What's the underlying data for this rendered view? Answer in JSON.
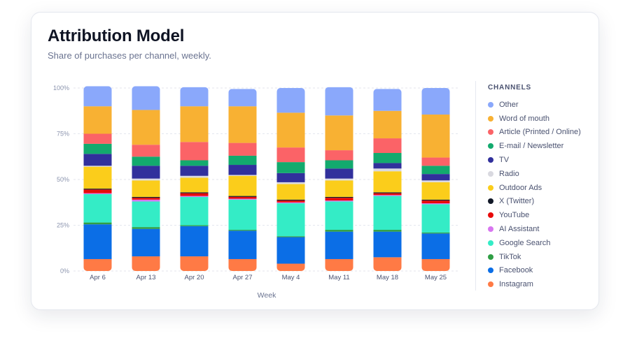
{
  "card": {
    "title": "Attribution Model",
    "subtitle": "Share of purchases per channel, weekly."
  },
  "legend": {
    "title": "CHANNELS"
  },
  "chart_data": {
    "type": "bar",
    "stacked": true,
    "xlabel": "Week",
    "ylabel": "",
    "ylim": [
      0,
      100
    ],
    "yticks": [
      "0%",
      "25%",
      "50%",
      "75%",
      "100%"
    ],
    "grid": true,
    "legend_position": "right",
    "categories": [
      "Apr 6",
      "Apr 13",
      "Apr 20",
      "Apr 27",
      "May 4",
      "May 11",
      "May 18",
      "May 25"
    ],
    "series": [
      {
        "name": "Instagram",
        "color": "#ff7a45",
        "values": [
          6.5,
          8.0,
          8.0,
          6.5,
          4.0,
          6.5,
          7.5,
          6.5
        ]
      },
      {
        "name": "Facebook",
        "color": "#0b6ee6",
        "values": [
          19.0,
          15.0,
          16.5,
          15.5,
          14.5,
          15.0,
          14.0,
          14.0
        ]
      },
      {
        "name": "TikTok",
        "color": "#2f9e44",
        "values": [
          1.0,
          1.0,
          0.5,
          0.5,
          0.5,
          1.0,
          1.0,
          0.5
        ]
      },
      {
        "name": "Google Search",
        "color": "#34ecc6",
        "values": [
          15.5,
          14.0,
          15.5,
          16.5,
          18.0,
          15.5,
          18.5,
          15.5
        ]
      },
      {
        "name": "AI Assistant",
        "color": "#d876f0",
        "values": [
          0.5,
          1.0,
          0.5,
          0.5,
          0.5,
          0.5,
          0.5,
          0.5
        ]
      },
      {
        "name": "YouTube",
        "color": "#e80a0a",
        "values": [
          2.0,
          1.0,
          1.5,
          1.0,
          1.0,
          1.5,
          1.0,
          1.5
        ]
      },
      {
        "name": "X (Twitter)",
        "color": "#111827",
        "values": [
          0.5,
          0.5,
          0.5,
          0.5,
          0.5,
          0.5,
          0.5,
          0.5
        ]
      },
      {
        "name": "Outdoor Ads",
        "color": "#fbcd1b",
        "values": [
          12.0,
          9.0,
          8.0,
          11.0,
          8.5,
          9.0,
          11.5,
          9.5
        ]
      },
      {
        "name": "Radio",
        "color": "#d9d9e0",
        "values": [
          0.5,
          1.0,
          1.0,
          0.5,
          1.0,
          1.0,
          1.5,
          1.0
        ]
      },
      {
        "name": "TV",
        "color": "#31309c",
        "values": [
          6.5,
          7.0,
          5.5,
          5.5,
          5.0,
          5.5,
          3.0,
          3.5
        ]
      },
      {
        "name": "E-mail / Newsletter",
        "color": "#13aa6e",
        "values": [
          5.5,
          5.0,
          3.0,
          5.0,
          6.0,
          4.5,
          5.5,
          4.5
        ]
      },
      {
        "name": "Article (Printed / Online)",
        "color": "#fb6367",
        "values": [
          5.5,
          6.5,
          10.0,
          7.0,
          8.0,
          5.5,
          8.0,
          4.5
        ]
      },
      {
        "name": "Word of mouth",
        "color": "#f8b133",
        "values": [
          15.0,
          19.0,
          19.5,
          20.0,
          19.0,
          19.0,
          15.0,
          23.5
        ]
      },
      {
        "name": "Other",
        "color": "#8aa8fb",
        "values": [
          11.0,
          13.0,
          10.5,
          9.5,
          13.5,
          15.5,
          12.0,
          14.5
        ]
      }
    ]
  }
}
